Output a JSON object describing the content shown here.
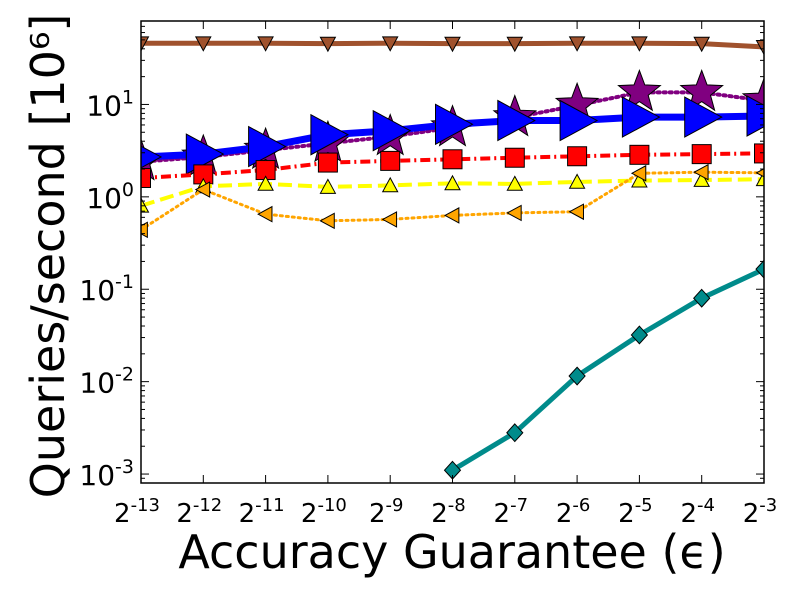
{
  "chart_data": {
    "type": "line",
    "xlabel": "Accuracy Guarantee (ϵ)",
    "ylabel": "Queries/second [10⁶]",
    "x_scale": "log2",
    "y_scale": "log10",
    "xlim_exp": [
      -13,
      -3
    ],
    "ylim": [
      0.0008,
      80
    ],
    "grid": false,
    "x_ticks": [
      {
        "base": "2",
        "exp": "-13"
      },
      {
        "base": "2",
        "exp": "-12"
      },
      {
        "base": "2",
        "exp": "-11"
      },
      {
        "base": "2",
        "exp": "-10"
      },
      {
        "base": "2",
        "exp": "-9"
      },
      {
        "base": "2",
        "exp": "-8"
      },
      {
        "base": "2",
        "exp": "-7"
      },
      {
        "base": "2",
        "exp": "-6"
      },
      {
        "base": "2",
        "exp": "-5"
      },
      {
        "base": "2",
        "exp": "-4"
      },
      {
        "base": "2",
        "exp": "-3"
      }
    ],
    "y_ticks": [
      {
        "value": 0.001,
        "base": "10",
        "exp": "-3"
      },
      {
        "value": 0.01,
        "base": "10",
        "exp": "-2"
      },
      {
        "value": 0.1,
        "base": "10",
        "exp": "-1"
      },
      {
        "value": 1,
        "base": "10",
        "exp": "0"
      },
      {
        "value": 10,
        "base": "10",
        "exp": "1"
      }
    ],
    "series": [
      {
        "id": "brown",
        "color": "#a0522d",
        "marker_color": "#a0522d",
        "marker": "triangle-down",
        "dash": "solid",
        "line_width": 5,
        "marker_size": 15,
        "x_exp": [
          -13,
          -12,
          -11,
          -10,
          -9,
          -8,
          -7,
          -6,
          -5,
          -4,
          -3
        ],
        "values": [
          46,
          46,
          46,
          45.5,
          46,
          45.5,
          45.5,
          46,
          46,
          45.5,
          42
        ]
      },
      {
        "id": "purple",
        "color": "#800080",
        "marker_color": "#800080",
        "marker": "star",
        "dash": "dotted",
        "line_width": 4,
        "marker_size": 44,
        "x_exp": [
          -13,
          -12,
          -11,
          -10,
          -9,
          -8,
          -7,
          -6,
          -5,
          -4,
          -3
        ],
        "values": [
          2.4,
          2.7,
          3.2,
          3.8,
          4.5,
          5.6,
          7.2,
          9.8,
          13.5,
          13.5,
          11
        ]
      },
      {
        "id": "blue",
        "color": "#0000ff",
        "marker_color": "#0000ff",
        "marker": "triangle-right",
        "dash": "solid",
        "line_width": 7,
        "marker_size": 40,
        "x_exp": [
          -13,
          -12,
          -11,
          -10,
          -9,
          -8,
          -7,
          -6,
          -5,
          -4,
          -3
        ],
        "values": [
          2.7,
          2.9,
          3.5,
          4.7,
          5.2,
          6.1,
          6.7,
          6.7,
          7.3,
          7.3,
          7.5
        ]
      },
      {
        "id": "red",
        "color": "#ff0000",
        "marker_color": "#ff0000",
        "marker": "square",
        "dash": "dashdot",
        "line_width": 4,
        "marker_size": 19,
        "x_exp": [
          -13,
          -12,
          -11,
          -10,
          -9,
          -8,
          -7,
          -6,
          -5,
          -4,
          -3
        ],
        "values": [
          1.6,
          1.75,
          1.95,
          2.35,
          2.45,
          2.55,
          2.65,
          2.75,
          2.85,
          2.9,
          2.95
        ]
      },
      {
        "id": "yellow",
        "color": "#ffff00",
        "marker_color": "#ffff00",
        "marker": "triangle-up",
        "dash": "dashed",
        "line_width": 4,
        "marker_size": 15,
        "x_exp": [
          -13,
          -12,
          -11,
          -10,
          -9,
          -8,
          -7,
          -6,
          -5,
          -4,
          -3
        ],
        "values": [
          0.8,
          1.3,
          1.38,
          1.28,
          1.33,
          1.4,
          1.38,
          1.45,
          1.5,
          1.52,
          1.55
        ]
      },
      {
        "id": "orange",
        "color": "#ffa500",
        "marker_color": "#ffa500",
        "marker": "triangle-left",
        "dash": "dotted",
        "line_width": 3,
        "marker_size": 15,
        "x_exp": [
          -13,
          -12,
          -11,
          -10,
          -9,
          -8,
          -7,
          -6,
          -5,
          -4,
          -3
        ],
        "values": [
          0.44,
          1.2,
          0.65,
          0.55,
          0.57,
          0.63,
          0.67,
          0.69,
          1.8,
          1.85,
          1.82
        ]
      },
      {
        "id": "teal",
        "color": "#008b8b",
        "marker_color": "#008b8b",
        "marker": "diamond",
        "dash": "solid",
        "line_width": 5,
        "marker_size": 16,
        "x_exp": [
          -8,
          -7,
          -6,
          -5,
          -4,
          -3
        ],
        "values": [
          0.0011,
          0.0028,
          0.0115,
          0.032,
          0.08,
          0.165
        ]
      }
    ]
  }
}
